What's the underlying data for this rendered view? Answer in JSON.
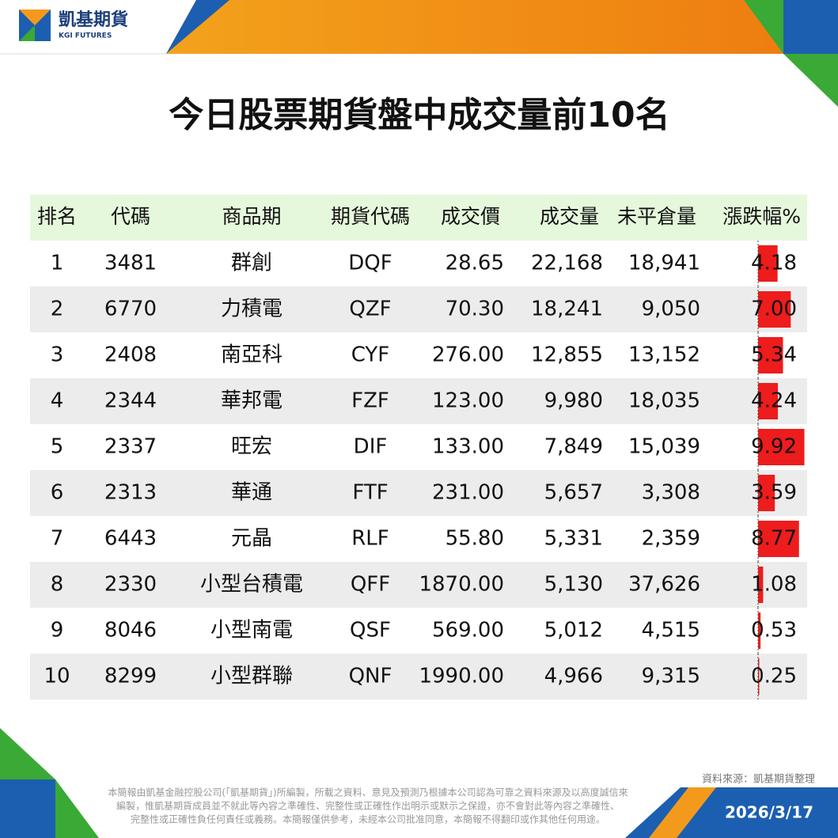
{
  "header": {
    "brand": "凱基期貨",
    "brand_en": "KGI FUTURES"
  },
  "title": "今日股票期貨盤中成交量前10名",
  "table": {
    "columns": [
      "排名",
      "代碼",
      "商品期",
      "期貨代碼",
      "成交價",
      "成交量",
      "未平倉量",
      "漲跌幅%"
    ],
    "rows": [
      [
        "1",
        "3481",
        "群創",
        "DQF",
        "28.65",
        "22,168",
        "18,941",
        "4.18"
      ],
      [
        "2",
        "6770",
        "力積電",
        "QZF",
        "70.30",
        "18,241",
        "9,050",
        "7.00"
      ],
      [
        "3",
        "2408",
        "南亞科",
        "CYF",
        "276.00",
        "12,855",
        "13,152",
        "5.34"
      ],
      [
        "4",
        "2344",
        "華邦電",
        "FZF",
        "123.00",
        "9,980",
        "18,035",
        "4.24"
      ],
      [
        "5",
        "2337",
        "旺宏",
        "DIF",
        "133.00",
        "7,849",
        "15,039",
        "9.92"
      ],
      [
        "6",
        "2313",
        "華通",
        "FTF",
        "231.00",
        "5,657",
        "3,308",
        "3.59"
      ],
      [
        "7",
        "6443",
        "元晶",
        "RLF",
        "55.80",
        "5,331",
        "2,359",
        "8.77"
      ],
      [
        "8",
        "2330",
        "小型台積電",
        "QFF",
        "1870.00",
        "5,130",
        "37,626",
        "1.08"
      ],
      [
        "9",
        "8046",
        "小型南電",
        "QSF",
        "569.00",
        "5,012",
        "4,515",
        "0.53"
      ],
      [
        "10",
        "8299",
        "小型群聯",
        "QNF",
        "1990.00",
        "4,966",
        "9,315",
        "0.25"
      ]
    ]
  },
  "source": "資料來源：凱基期貨整理",
  "disclaimer": [
    "本簡報由凱基金融控股公司(「凱基期貨」)所編製，所載之資料、意見及預測乃根據本公司認為可靠之資料來源及以高度誠信來",
    "編製，惟凱基期貨成員並不就此等內容之準確性、完整性或正確性作出明示或默示之保證，亦不會對此等內容之準確性、",
    "完整性或正確性負任何責任或義務。本簡報僅供參考，未經本公司批准同意，本簡報不得翻印或作其他任何用途。"
  ],
  "date": "2026/3/17"
}
